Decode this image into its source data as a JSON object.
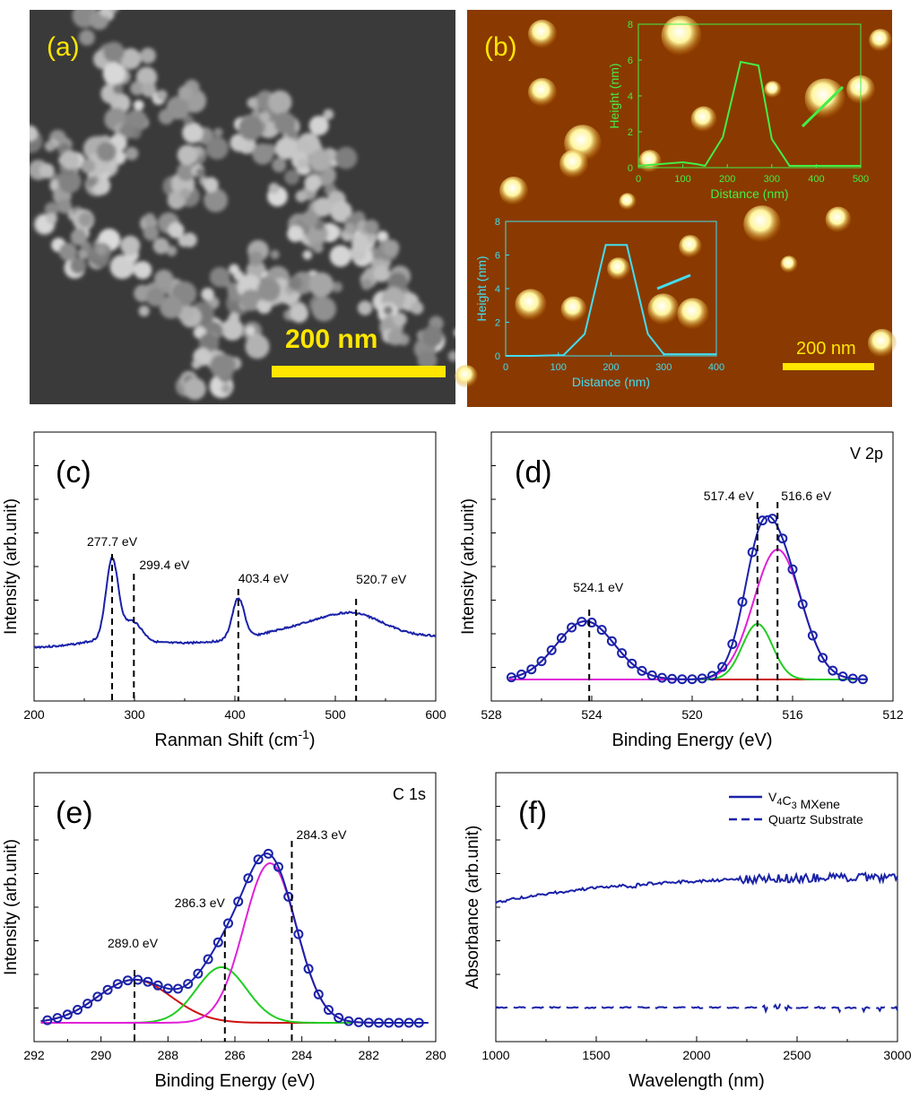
{
  "colors": {
    "navy": "#1a22a8",
    "magenta": "#e020d8",
    "green": "#22cc22",
    "red": "#cc1111",
    "yellow": "#ffe600",
    "afm_green": "#44ee44",
    "afm_cyan": "#44ddee",
    "afm_bg": "#8a3a00"
  },
  "panels": {
    "a": {
      "label": "(a)",
      "scalebar": "200 nm"
    },
    "b": {
      "label": "(b)",
      "scalebar": "200 nm"
    },
    "c": {
      "label": "(c)"
    },
    "d": {
      "label": "(d)",
      "tag": "V 2p"
    },
    "e": {
      "label": "(e)",
      "tag": "C 1s"
    },
    "f": {
      "label": "(f)"
    }
  },
  "chart_data": [
    {
      "id": "b-inset-1",
      "type": "line",
      "xlabel": "Distance (nm)",
      "ylabel": "Height (nm)",
      "xlim": [
        0,
        500
      ],
      "ylim": [
        0,
        8
      ],
      "xticks": [
        0,
        100,
        200,
        300,
        400,
        500
      ],
      "yticks": [
        0,
        2,
        4,
        6,
        8
      ],
      "x": [
        0,
        50,
        100,
        130,
        150,
        190,
        230,
        270,
        300,
        340,
        400,
        500
      ],
      "y": [
        0.1,
        0.2,
        0.3,
        0.2,
        0.1,
        1.7,
        5.9,
        5.7,
        1.6,
        0.1,
        0.1,
        0.1
      ],
      "color": "afm_green"
    },
    {
      "id": "b-inset-2",
      "type": "line",
      "xlabel": "Distance (nm)",
      "ylabel": "Height (nm)",
      "xlim": [
        0,
        400
      ],
      "ylim": [
        0,
        8
      ],
      "xticks": [
        0,
        100,
        200,
        300,
        400
      ],
      "yticks": [
        0,
        2,
        4,
        6,
        8
      ],
      "x": [
        0,
        50,
        110,
        150,
        190,
        230,
        270,
        300,
        400
      ],
      "y": [
        0,
        0,
        0.05,
        1.3,
        6.6,
        6.6,
        1.3,
        0.1,
        0.1
      ],
      "color": "afm_cyan"
    },
    {
      "id": "c",
      "type": "line",
      "xlabel": "Ranman Shift (cm",
      "xlabel_sup": "-1",
      "xlabel_end": ")",
      "ylabel": "Intensity (arb.unit)",
      "xlim": [
        200,
        600
      ],
      "xticks": [
        200,
        300,
        400,
        500,
        600
      ],
      "peaks": [
        {
          "x": 277.7,
          "label": "277.7 eV"
        },
        {
          "x": 299.4,
          "label": "299.4 eV"
        },
        {
          "x": 403.4,
          "label": "403.4 eV"
        },
        {
          "x": 520.7,
          "label": "520.7 eV"
        }
      ]
    },
    {
      "id": "d",
      "type": "line",
      "xlabel": "Binding Energy (eV)",
      "ylabel": "Intensity (arb.unit)",
      "xlim": [
        528,
        512
      ],
      "xticks": [
        528,
        524,
        520,
        516,
        512
      ],
      "peaks": [
        {
          "x": 524.1,
          "label": "524.1 eV"
        },
        {
          "x": 517.4,
          "label": "517.4 eV"
        },
        {
          "x": 516.6,
          "label": "516.6 eV"
        }
      ]
    },
    {
      "id": "e",
      "type": "line",
      "xlabel": "Binding Energy (eV)",
      "ylabel": "Intensity (arb.unit)",
      "xlim": [
        292,
        280
      ],
      "xticks": [
        292,
        290,
        288,
        286,
        284,
        282,
        280
      ],
      "peaks": [
        {
          "x": 289.0,
          "label": "289.0 eV"
        },
        {
          "x": 286.3,
          "label": "286.3 eV"
        },
        {
          "x": 284.3,
          "label": "284.3 eV"
        }
      ]
    },
    {
      "id": "f",
      "type": "line",
      "xlabel": "Wavelength (nm)",
      "ylabel": "Absorbance (arb.unit)",
      "xlim": [
        1000,
        3000
      ],
      "xticks": [
        1000,
        1500,
        2000,
        2500,
        3000
      ],
      "series": [
        {
          "name": "V4C3 MXene",
          "style": "solid"
        },
        {
          "name": "Quartz Substrate",
          "style": "dashed"
        }
      ]
    }
  ]
}
